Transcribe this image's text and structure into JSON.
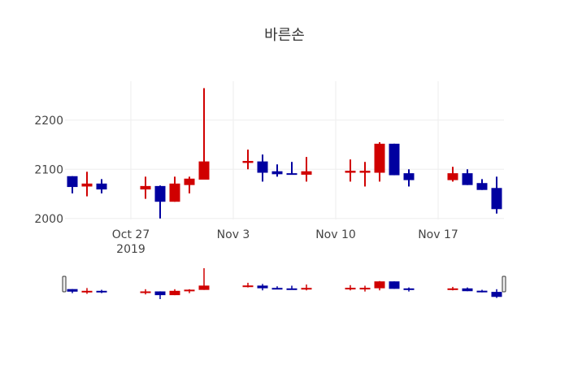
{
  "chart_data": {
    "type": "candlestick",
    "title": "바른손",
    "xlabel": "",
    "ylabel": "",
    "ylim": [
      1998,
      2279
    ],
    "xlim": [
      "2019-10-22T12:00",
      "2019-11-21T12:00"
    ],
    "grid": true,
    "increasing_color": "#d00000",
    "decreasing_color": "#0000a0",
    "y_ticks": [
      2000,
      2100,
      2200
    ],
    "x_ticks": [
      {
        "date": "2019-10-27",
        "label": "Oct 27",
        "sublabel": "2019"
      },
      {
        "date": "2019-11-03",
        "label": "Nov 3"
      },
      {
        "date": "2019-11-10",
        "label": "Nov 10"
      },
      {
        "date": "2019-11-17",
        "label": "Nov 17"
      }
    ],
    "candles": [
      {
        "date": "2019-10-23",
        "open": 2086,
        "high": 2086,
        "low": 2051,
        "close": 2064
      },
      {
        "date": "2019-10-24",
        "open": 2065,
        "high": 2095,
        "low": 2045,
        "close": 2071
      },
      {
        "date": "2019-10-25",
        "open": 2071,
        "high": 2080,
        "low": 2051,
        "close": 2059
      },
      {
        "date": "2019-10-28",
        "open": 2059,
        "high": 2085,
        "low": 2040,
        "close": 2066
      },
      {
        "date": "2019-10-29",
        "open": 2066,
        "high": 2067,
        "low": 2000,
        "close": 2034
      },
      {
        "date": "2019-10-30",
        "open": 2034,
        "high": 2085,
        "low": 2034,
        "close": 2071
      },
      {
        "date": "2019-10-31",
        "open": 2068,
        "high": 2085,
        "low": 2051,
        "close": 2081
      },
      {
        "date": "2019-11-01",
        "open": 2079,
        "high": 2265,
        "low": 2079,
        "close": 2116
      },
      {
        "date": "2019-11-04",
        "open": 2113,
        "high": 2140,
        "low": 2100,
        "close": 2117
      },
      {
        "date": "2019-11-05",
        "open": 2116,
        "high": 2130,
        "low": 2075,
        "close": 2093
      },
      {
        "date": "2019-11-06",
        "open": 2096,
        "high": 2110,
        "low": 2085,
        "close": 2090
      },
      {
        "date": "2019-11-07",
        "open": 2092,
        "high": 2115,
        "low": 2089,
        "close": 2089
      },
      {
        "date": "2019-11-08",
        "open": 2089,
        "high": 2125,
        "low": 2075,
        "close": 2096
      },
      {
        "date": "2019-11-11",
        "open": 2093,
        "high": 2120,
        "low": 2075,
        "close": 2097
      },
      {
        "date": "2019-11-12",
        "open": 2093,
        "high": 2115,
        "low": 2065,
        "close": 2097
      },
      {
        "date": "2019-11-13",
        "open": 2093,
        "high": 2155,
        "low": 2075,
        "close": 2152
      },
      {
        "date": "2019-11-14",
        "open": 2152,
        "high": 2152,
        "low": 2088,
        "close": 2088
      },
      {
        "date": "2019-11-15",
        "open": 2092,
        "high": 2100,
        "low": 2065,
        "close": 2078
      },
      {
        "date": "2019-11-18",
        "open": 2078,
        "high": 2105,
        "low": 2075,
        "close": 2092
      },
      {
        "date": "2019-11-19",
        "open": 2092,
        "high": 2100,
        "low": 2068,
        "close": 2068
      },
      {
        "date": "2019-11-20",
        "open": 2072,
        "high": 2080,
        "low": 2058,
        "close": 2058
      },
      {
        "date": "2019-11-21",
        "open": 2062,
        "high": 2085,
        "low": 2010,
        "close": 2019
      }
    ]
  }
}
